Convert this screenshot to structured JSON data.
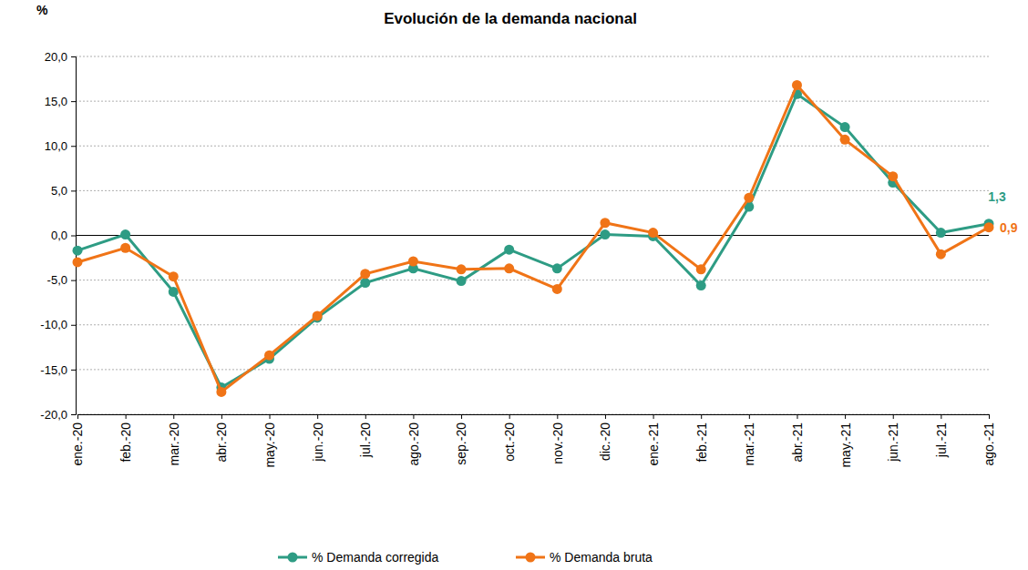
{
  "chart_data": {
    "type": "line",
    "title": "Evolución de la demanda nacional",
    "y_label": "%",
    "categories": [
      "ene.-20",
      "feb.-20",
      "mar.-20",
      "abr.-20",
      "may.-20",
      "jun.-20",
      "jul.-20",
      "ago.-20",
      "sep.-20",
      "oct.-20",
      "nov.-20",
      "dic.-20",
      "ene.-21",
      "feb.-21",
      "mar.-21",
      "abr.-21",
      "may.-21",
      "jun.-21",
      "jul.-21",
      "ago.-21"
    ],
    "series": [
      {
        "name": "% Demanda corregida",
        "color": "#2e9c84",
        "marker": "circle",
        "line_style": "solid",
        "values": [
          -1.7,
          0.1,
          -6.3,
          -17.0,
          -13.8,
          -9.2,
          -5.3,
          -3.7,
          -5.1,
          -1.6,
          -3.7,
          0.1,
          -0.1,
          -5.6,
          3.2,
          15.8,
          12.1,
          5.9,
          0.3,
          1.3
        ],
        "value_labels": [
          null,
          null,
          null,
          null,
          null,
          null,
          null,
          null,
          null,
          null,
          null,
          null,
          null,
          null,
          null,
          null,
          null,
          null,
          null,
          "1,3"
        ]
      },
      {
        "name": "% Demanda bruta",
        "color": "#f07417",
        "marker": "circle",
        "line_style": "solid",
        "values": [
          -3.0,
          -1.4,
          -4.6,
          -17.5,
          -13.4,
          -9.0,
          -4.3,
          -2.9,
          -3.8,
          -3.7,
          -6.0,
          1.4,
          0.3,
          -3.8,
          4.2,
          16.8,
          10.7,
          6.6,
          -2.1,
          0.9
        ],
        "value_labels": [
          null,
          null,
          null,
          null,
          null,
          null,
          null,
          null,
          null,
          null,
          null,
          null,
          null,
          null,
          null,
          null,
          null,
          null,
          null,
          "0,9"
        ]
      }
    ],
    "ylim": [
      -20,
      20
    ],
    "yticks": [
      {
        "value": -20,
        "label": "-20,0"
      },
      {
        "value": -15,
        "label": "-15,0"
      },
      {
        "value": -10,
        "label": "-10,0"
      },
      {
        "value": -5,
        "label": "-5,0"
      },
      {
        "value": 0,
        "label": "0,0"
      },
      {
        "value": 5,
        "label": "5,0"
      },
      {
        "value": 10,
        "label": "10,0"
      },
      {
        "value": 15,
        "label": "15,0"
      },
      {
        "value": 20,
        "label": "20,0"
      }
    ],
    "grid": true,
    "legend": "bottom",
    "data_labels": true
  }
}
